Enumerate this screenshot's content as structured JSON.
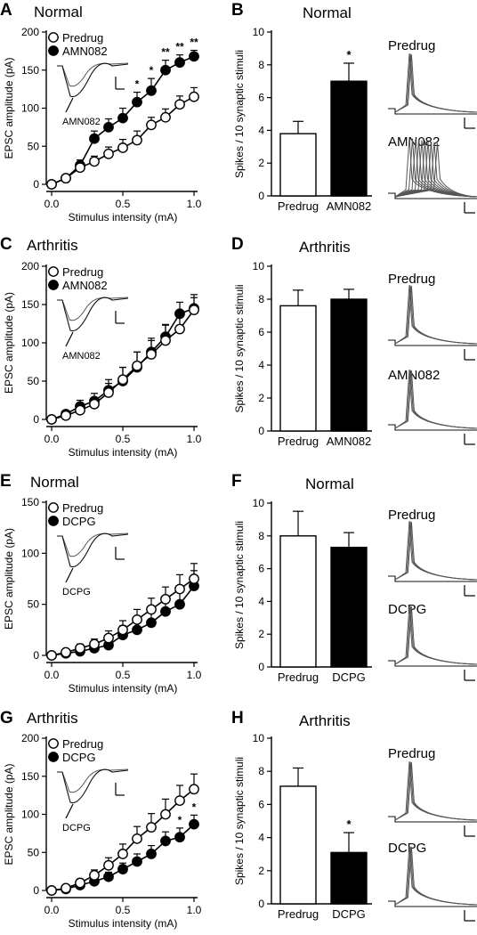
{
  "x_ticks": [
    "0.0",
    "0.5",
    "1.0"
  ],
  "colors": {
    "open": "#ffffff",
    "filled": "#000000"
  },
  "chart_data": [
    {
      "type": "line",
      "panel": "A",
      "title": "Normal",
      "xlabel": "Stimulus intensity (mA)",
      "ylabel": "EPSC amplitude (pA)",
      "xlim": [
        0,
        1.0
      ],
      "ylim": [
        0,
        200
      ],
      "yticks": [
        "0",
        "50",
        "100",
        "150",
        "200"
      ],
      "x": [
        0,
        0.1,
        0.2,
        0.3,
        0.4,
        0.5,
        0.6,
        0.7,
        0.8,
        0.9,
        1.0
      ],
      "series": [
        {
          "name": "Predrug",
          "marker": "open",
          "values": [
            0,
            8,
            22,
            30,
            40,
            48,
            58,
            78,
            88,
            105,
            115
          ],
          "errors": [
            2,
            4,
            6,
            7,
            9,
            11,
            12,
            10,
            11,
            11,
            12
          ]
        },
        {
          "name": "AMN082",
          "marker": "filled",
          "values": [
            0,
            8,
            25,
            60,
            75,
            87,
            108,
            123,
            150,
            160,
            168
          ],
          "errors": [
            2,
            4,
            7,
            10,
            11,
            13,
            13,
            16,
            13,
            10,
            8
          ]
        }
      ],
      "annotations": [
        "*",
        "*",
        "**",
        "**",
        "**"
      ],
      "inset_label": "AMN082",
      "legend": "top-left"
    },
    {
      "type": "bar",
      "panel": "B",
      "title": "Normal",
      "ylabel": "Spikes / 10 synaptic stimuli",
      "ylim": [
        0,
        10
      ],
      "yticks": [
        "0",
        "2",
        "4",
        "6",
        "8",
        "10"
      ],
      "categories": [
        "Predrug",
        "AMN082"
      ],
      "values": [
        3.8,
        7.0
      ],
      "errors": [
        0.75,
        1.1
      ],
      "significance": [
        "",
        "*"
      ],
      "trace_labels": [
        "Predrug",
        "AMN082"
      ]
    },
    {
      "type": "line",
      "panel": "C",
      "title": "Arthritis",
      "xlabel": "Stimulus intensity (mA)",
      "ylabel": "EPSC amplitude (pA)",
      "xlim": [
        0,
        1.0
      ],
      "ylim": [
        0,
        200
      ],
      "yticks": [
        "0",
        "50",
        "100",
        "150",
        "200"
      ],
      "x": [
        0,
        0.1,
        0.2,
        0.3,
        0.4,
        0.5,
        0.6,
        0.7,
        0.8,
        0.9,
        1.0
      ],
      "series": [
        {
          "name": "Predrug",
          "marker": "open",
          "values": [
            0,
            5,
            12,
            20,
            35,
            52,
            70,
            85,
            103,
            118,
            143
          ],
          "errors": [
            2,
            4,
            6,
            8,
            12,
            16,
            18,
            18,
            20,
            22,
            20
          ]
        },
        {
          "name": "AMN082",
          "marker": "filled",
          "values": [
            0,
            7,
            17,
            24,
            38,
            50,
            68,
            88,
            108,
            138,
            145
          ],
          "errors": [
            2,
            4,
            8,
            10,
            14,
            18,
            20,
            18,
            16,
            15,
            14
          ]
        }
      ],
      "inset_label": "AMN082",
      "legend": "top-left"
    },
    {
      "type": "bar",
      "panel": "D",
      "title": "Arthritis",
      "ylabel": "Spikes / 10 synaptic stimuli",
      "ylim": [
        0,
        10
      ],
      "yticks": [
        "0",
        "2",
        "4",
        "6",
        "8",
        "10"
      ],
      "categories": [
        "Predrug",
        "AMN082"
      ],
      "values": [
        7.6,
        8.0
      ],
      "errors": [
        0.95,
        0.6
      ],
      "significance": [
        "",
        ""
      ],
      "trace_labels": [
        "Predrug",
        "AMN082"
      ]
    },
    {
      "type": "line",
      "panel": "E",
      "title": "Normal",
      "xlabel": "Stimulus intensity (mA)",
      "ylabel": "EPSC amplitude (pA)",
      "xlim": [
        0,
        1.0
      ],
      "ylim": [
        0,
        150
      ],
      "yticks": [
        "0",
        "50",
        "100",
        "150"
      ],
      "x": [
        0,
        0.1,
        0.2,
        0.3,
        0.4,
        0.5,
        0.6,
        0.7,
        0.8,
        0.9,
        1.0
      ],
      "series": [
        {
          "name": "Predrug",
          "marker": "open",
          "values": [
            0,
            3,
            7,
            11,
            17,
            25,
            35,
            45,
            55,
            65,
            75
          ],
          "errors": [
            2,
            3,
            4,
            5,
            7,
            9,
            10,
            11,
            12,
            14,
            15
          ]
        },
        {
          "name": "DCPG",
          "marker": "filled",
          "values": [
            0,
            2,
            4,
            7,
            10,
            20,
            25,
            32,
            43,
            50,
            68
          ],
          "errors": [
            2,
            3,
            4,
            5,
            7,
            9,
            10,
            11,
            12,
            13,
            15
          ]
        }
      ],
      "inset_label": "DCPG",
      "legend": "top-left"
    },
    {
      "type": "bar",
      "panel": "F",
      "title": "Normal",
      "ylabel": "Spikes / 10 synaptic stimuli",
      "ylim": [
        0,
        10
      ],
      "yticks": [
        "0",
        "2",
        "4",
        "6",
        "8",
        "10"
      ],
      "categories": [
        "Predrug",
        "DCPG"
      ],
      "values": [
        8.0,
        7.3
      ],
      "errors": [
        1.5,
        0.9
      ],
      "significance": [
        "",
        ""
      ],
      "trace_labels": [
        "Predrug",
        "DCPG"
      ]
    },
    {
      "type": "line",
      "panel": "G",
      "title": "Arthritis",
      "xlabel": "Stimulus intensity (mA)",
      "ylabel": "EPSC amplitude (pA)",
      "xlim": [
        0,
        1.0
      ],
      "ylim": [
        0,
        200
      ],
      "yticks": [
        "0",
        "50",
        "100",
        "150",
        "200"
      ],
      "x": [
        0,
        0.1,
        0.2,
        0.3,
        0.4,
        0.5,
        0.6,
        0.7,
        0.8,
        0.9,
        1.0
      ],
      "series": [
        {
          "name": "Predrug",
          "marker": "open",
          "values": [
            0,
            3,
            10,
            20,
            33,
            48,
            68,
            83,
            100,
            118,
            133
          ],
          "errors": [
            2,
            3,
            5,
            7,
            10,
            13,
            16,
            18,
            20,
            20,
            20
          ]
        },
        {
          "name": "DCPG",
          "marker": "filled",
          "values": [
            0,
            2,
            7,
            12,
            18,
            28,
            38,
            48,
            65,
            70,
            87
          ],
          "errors": [
            2,
            3,
            4,
            5,
            6,
            8,
            10,
            11,
            12,
            12,
            12
          ]
        }
      ],
      "annotations": [
        "*",
        "*"
      ],
      "inset_label": "DCPG",
      "legend": "top-left"
    },
    {
      "type": "bar",
      "panel": "H",
      "title": "Arthritis",
      "ylabel": "Spikes / 10 synaptic stimuli",
      "ylim": [
        0,
        10
      ],
      "yticks": [
        "0",
        "2",
        "4",
        "6",
        "8",
        "10"
      ],
      "categories": [
        "Predrug",
        "DCPG"
      ],
      "values": [
        7.1,
        3.1
      ],
      "errors": [
        1.1,
        1.2
      ],
      "significance": [
        "",
        "*"
      ],
      "trace_labels": [
        "Predrug",
        "DCPG"
      ]
    }
  ]
}
